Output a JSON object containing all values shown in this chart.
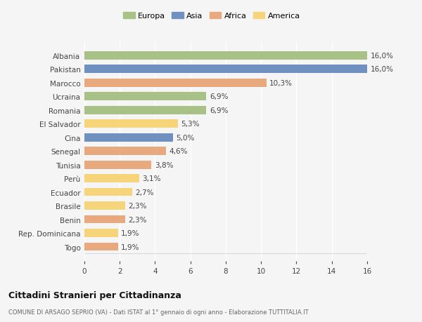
{
  "categories": [
    "Albania",
    "Pakistan",
    "Marocco",
    "Ucraina",
    "Romania",
    "El Salvador",
    "Cina",
    "Senegal",
    "Tunisia",
    "Perù",
    "Ecuador",
    "Brasile",
    "Benin",
    "Rep. Dominicana",
    "Togo"
  ],
  "values": [
    16.0,
    16.0,
    10.3,
    6.9,
    6.9,
    5.3,
    5.0,
    4.6,
    3.8,
    3.1,
    2.7,
    2.3,
    2.3,
    1.9,
    1.9
  ],
  "labels": [
    "16,0%",
    "16,0%",
    "10,3%",
    "6,9%",
    "6,9%",
    "5,3%",
    "5,0%",
    "4,6%",
    "3,8%",
    "3,1%",
    "2,7%",
    "2,3%",
    "2,3%",
    "1,9%",
    "1,9%"
  ],
  "continents": [
    "Europa",
    "Asia",
    "Africa",
    "Europa",
    "Europa",
    "America",
    "Asia",
    "Africa",
    "Africa",
    "America",
    "America",
    "America",
    "Africa",
    "America",
    "Africa"
  ],
  "colors": {
    "Europa": "#a8c187",
    "Asia": "#7090bf",
    "Africa": "#e8a97e",
    "America": "#f5d47a"
  },
  "legend_order": [
    "Europa",
    "Asia",
    "Africa",
    "America"
  ],
  "xlim": [
    0,
    16
  ],
  "xticks": [
    0,
    2,
    4,
    6,
    8,
    10,
    12,
    14,
    16
  ],
  "title": "Cittadini Stranieri per Cittadinanza",
  "subtitle": "COMUNE DI ARSAGO SEPRIO (VA) - Dati ISTAT al 1° gennaio di ogni anno - Elaborazione TUTTITALIA.IT",
  "bg_color": "#f5f5f5",
  "bar_height": 0.6
}
